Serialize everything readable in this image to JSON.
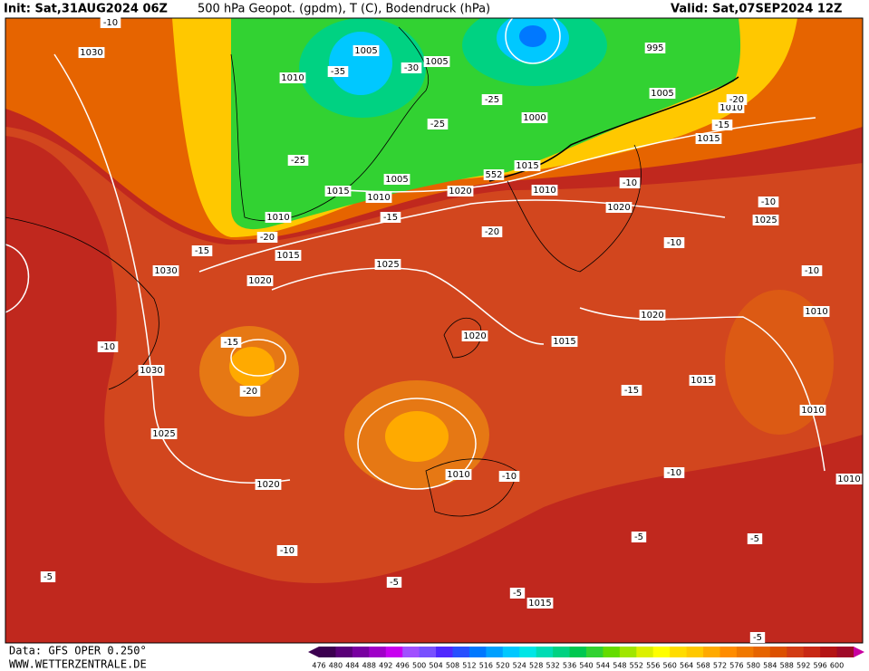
{
  "header": {
    "init": "Init: Sat,31AUG2024 06Z",
    "title": "500 hPa Geopot. (gpdm), T (C), Bodendruck (hPa)",
    "valid": "Valid: Sat,07SEP2024 12Z"
  },
  "map": {
    "pressure_labels": [
      1030,
      1010,
      1005,
      1005,
      995,
      1005,
      1010,
      1000,
      1015,
      1015,
      1005,
      1015,
      1010,
      1020,
      1010,
      1010,
      1020,
      1025,
      1015,
      1030,
      1025,
      1020,
      1020,
      1010,
      1020,
      1015,
      1030,
      1015,
      1010,
      1025,
      1010,
      1020,
      1010,
      1015
    ],
    "temperature_labels": [
      -10,
      -35,
      -30,
      -25,
      -20,
      -15,
      -25,
      -25,
      -15,
      -20,
      -20,
      -10,
      -10,
      -15,
      -10,
      -10,
      -15,
      -10,
      -20,
      -15,
      -10,
      -10,
      -10,
      -5,
      -5,
      -5,
      -5,
      -5,
      -5
    ],
    "height_labels": [
      552
    ]
  },
  "colorbar": {
    "values": [
      476,
      480,
      484,
      488,
      492,
      496,
      500,
      504,
      508,
      512,
      516,
      520,
      524,
      528,
      532,
      536,
      540,
      544,
      548,
      552,
      556,
      560,
      564,
      568,
      572,
      576,
      580,
      584,
      588,
      592,
      596,
      600
    ],
    "colors": [
      "#3c0050",
      "#5a0078",
      "#7800a0",
      "#a000c8",
      "#c800f0",
      "#a050ff",
      "#7850ff",
      "#5028ff",
      "#2850ff",
      "#0078ff",
      "#00a0ff",
      "#00c8ff",
      "#00e6e6",
      "#00dcb4",
      "#00d282",
      "#00c850",
      "#32d232",
      "#64dc00",
      "#a0e600",
      "#dcf000",
      "#ffff00",
      "#ffdc00",
      "#ffc800",
      "#ffaa00",
      "#ff8c00",
      "#f07800",
      "#e66400",
      "#dc5000",
      "#d23c14",
      "#c82814",
      "#b41414",
      "#a00a28"
    ]
  },
  "footer": {
    "source": "Data: GFS OPER 0.250°",
    "site": "WWW.WETTERZENTRALE.DE"
  }
}
